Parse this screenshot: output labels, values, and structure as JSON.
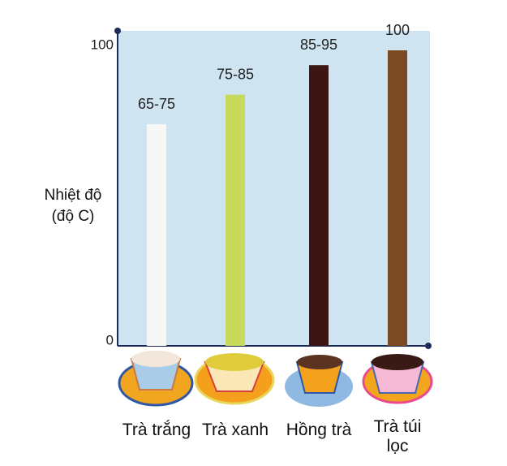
{
  "chart_data": {
    "type": "bar",
    "y_label": "Nhiệt độ (độ C)",
    "categories": [
      "Trà trắng",
      "Trà xanh",
      "Hồng trà",
      "Trà túi lọc"
    ],
    "values": [
      75,
      85,
      95,
      100
    ],
    "value_labels": [
      "65-75",
      "75-85",
      "85-95",
      "100"
    ],
    "colors": [
      "#f7f7f5",
      "#c8da5c",
      "#3b1612",
      "#7b4a22"
    ],
    "ylim": [
      0,
      106.6
    ],
    "yticks": [
      0,
      100
    ],
    "grid": false
  }
}
